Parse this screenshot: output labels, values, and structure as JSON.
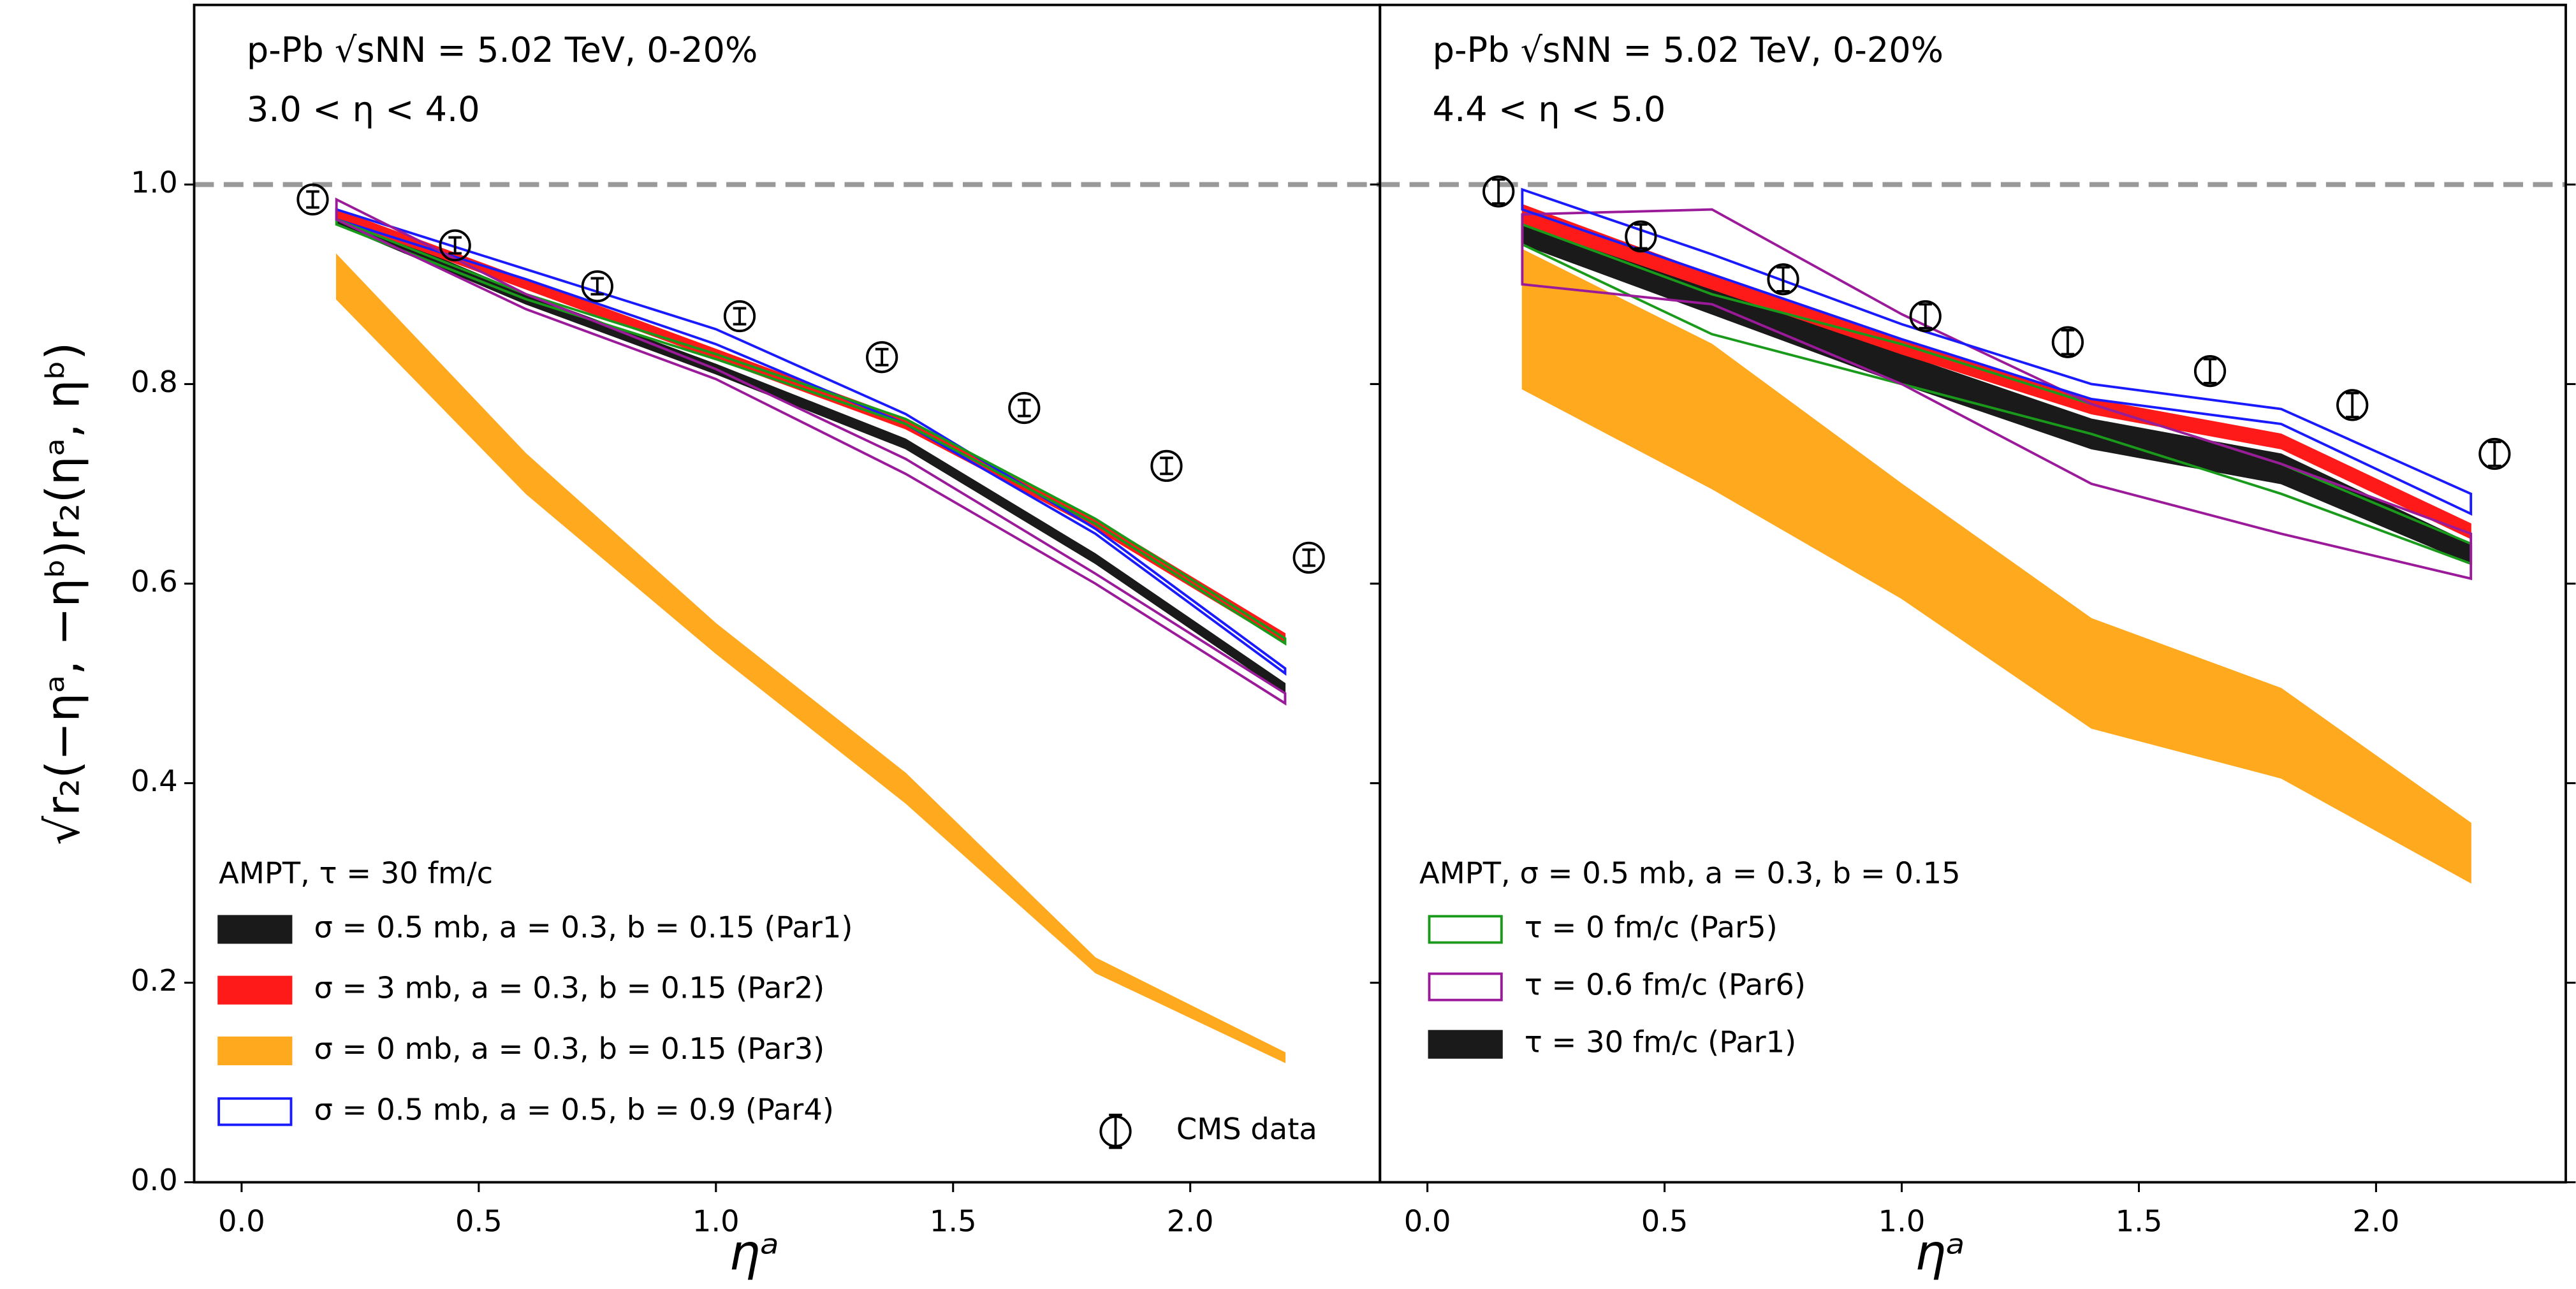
{
  "chart_data": [
    {
      "type": "band",
      "title": "p-Pb √sNN = 5.02 TeV, 0-20%",
      "subtitle": "3.0 < η < 4.0",
      "xlabel": "ηᵃ",
      "ylabel": "√r₂(−ηᵃ, −ηᵇ)r₂(ηᵃ, ηᵇ)",
      "xlim": [
        -0.1,
        2.4
      ],
      "ylim": [
        0,
        1.18
      ],
      "xticks": [
        0.0,
        0.5,
        1.0,
        1.5,
        2.0
      ],
      "yticks": [
        0.0,
        0.2,
        0.4,
        0.6,
        0.8,
        1.0
      ],
      "ytick_labels": true,
      "reference_line": 1.0,
      "legend_title": "AMPT, τ = 30 fm/c",
      "x": [
        0.2,
        0.6,
        1.0,
        1.4,
        1.8,
        2.2
      ],
      "series": [
        {
          "name": "σ = 0.5 mb, a = 0.3, b = 0.15 (Par1)",
          "color": "#1a1a1a",
          "style": "fill",
          "low": [
            0.96,
            0.88,
            0.81,
            0.735,
            0.62,
            0.49
          ],
          "high": [
            0.97,
            0.89,
            0.82,
            0.745,
            0.63,
            0.5
          ]
        },
        {
          "name": "σ = 3 mb, a = 0.3, b = 0.15 (Par2)",
          "color": "#ff1a1a",
          "style": "fill",
          "low": [
            0.965,
            0.895,
            0.825,
            0.755,
            0.655,
            0.54
          ],
          "high": [
            0.975,
            0.905,
            0.835,
            0.765,
            0.665,
            0.55
          ]
        },
        {
          "name": "σ = 0 mb, a = 0.3, b = 0.15 (Par3)",
          "color": "#ffa91f",
          "style": "fill",
          "low": [
            0.885,
            0.69,
            0.53,
            0.38,
            0.21,
            0.12
          ],
          "high": [
            0.93,
            0.73,
            0.56,
            0.41,
            0.225,
            0.13
          ]
        },
        {
          "name": "σ = 0.5 mb, a = 0.5, b = 0.9 (Par4)",
          "color": "#1a1aff",
          "style": "outline",
          "low": [
            0.965,
            0.905,
            0.84,
            0.76,
            0.65,
            0.51
          ],
          "high": [
            0.975,
            0.915,
            0.855,
            0.77,
            0.655,
            0.515
          ]
        },
        {
          "color": "#1a9a1a",
          "style": "outline",
          "low": [
            0.96,
            0.885,
            0.825,
            0.76,
            0.66,
            0.54
          ],
          "high": [
            0.965,
            0.89,
            0.83,
            0.765,
            0.665,
            0.545
          ]
        },
        {
          "color": "#9a1a9a",
          "style": "outline",
          "low": [
            0.965,
            0.875,
            0.805,
            0.71,
            0.6,
            0.48
          ],
          "high": [
            0.985,
            0.89,
            0.815,
            0.725,
            0.61,
            0.49
          ]
        }
      ],
      "points": {
        "name": "CMS data",
        "color": "#000000",
        "x": [
          0.15,
          0.45,
          0.75,
          1.05,
          1.35,
          1.65,
          1.95,
          2.25
        ],
        "values": [
          0.985,
          0.939,
          0.898,
          0.868,
          0.827,
          0.776,
          0.718,
          0.626
        ],
        "errors": [
          0.008,
          0.008,
          0.008,
          0.008,
          0.008,
          0.008,
          0.008,
          0.008
        ]
      }
    },
    {
      "type": "band",
      "title": "p-Pb √sNN = 5.02 TeV, 0-20%",
      "subtitle": "4.4 < η < 5.0",
      "xlabel": "ηᵃ",
      "xlim": [
        -0.1,
        2.4
      ],
      "ylim": [
        0,
        1.18
      ],
      "xticks": [
        0.0,
        0.5,
        1.0,
        1.5,
        2.0
      ],
      "yticks": [
        0.0,
        0.2,
        0.4,
        0.6,
        0.8,
        1.0
      ],
      "ytick_labels": false,
      "reference_line": 1.0,
      "legend_title": "AMPT, σ = 0.5 mb, a = 0.3, b = 0.15",
      "x": [
        0.2,
        0.6,
        1.0,
        1.4,
        1.8,
        2.2
      ],
      "series": [
        {
          "name": "τ = 0 fm/c (Par5)",
          "color": "#1a9a1a",
          "style": "outline",
          "low": [
            0.94,
            0.85,
            0.8,
            0.75,
            0.69,
            0.62
          ],
          "high": [
            0.96,
            0.89,
            0.84,
            0.78,
            0.72,
            0.64
          ]
        },
        {
          "name": "τ = 0.6 fm/c (Par6)",
          "color": "#9a1a9a",
          "style": "outline",
          "low": [
            0.9,
            0.88,
            0.8,
            0.7,
            0.65,
            0.605
          ],
          "high": [
            0.97,
            0.975,
            0.87,
            0.78,
            0.72,
            0.65
          ]
        },
        {
          "name": "τ = 30 fm/c (Par1)",
          "color": "#1a1a1a",
          "style": "fill",
          "low": [
            0.94,
            0.87,
            0.8,
            0.735,
            0.7,
            0.62
          ],
          "high": [
            0.965,
            0.9,
            0.83,
            0.765,
            0.73,
            0.64
          ]
        },
        {
          "color": "#ffa91f",
          "style": "fill",
          "low": [
            0.795,
            0.695,
            0.585,
            0.455,
            0.405,
            0.3
          ],
          "high": [
            0.935,
            0.84,
            0.7,
            0.565,
            0.495,
            0.36
          ]
        },
        {
          "color": "#ff1a1a",
          "style": "fill",
          "low": [
            0.96,
            0.895,
            0.83,
            0.77,
            0.735,
            0.645
          ],
          "high": [
            0.98,
            0.91,
            0.845,
            0.785,
            0.75,
            0.66
          ]
        },
        {
          "color": "#1a1aff",
          "style": "outline",
          "low": [
            0.975,
            0.91,
            0.845,
            0.785,
            0.76,
            0.67
          ],
          "high": [
            0.995,
            0.93,
            0.86,
            0.8,
            0.775,
            0.69
          ]
        }
      ],
      "points": {
        "name": "CMS data",
        "color": "#000000",
        "x": [
          0.15,
          0.45,
          0.75,
          1.05,
          1.35,
          1.65,
          1.95,
          2.25
        ],
        "values": [
          0.993,
          0.948,
          0.905,
          0.868,
          0.842,
          0.813,
          0.779,
          0.73
        ],
        "errors": [
          0.012,
          0.012,
          0.012,
          0.012,
          0.012,
          0.012,
          0.012,
          0.012
        ]
      }
    }
  ]
}
